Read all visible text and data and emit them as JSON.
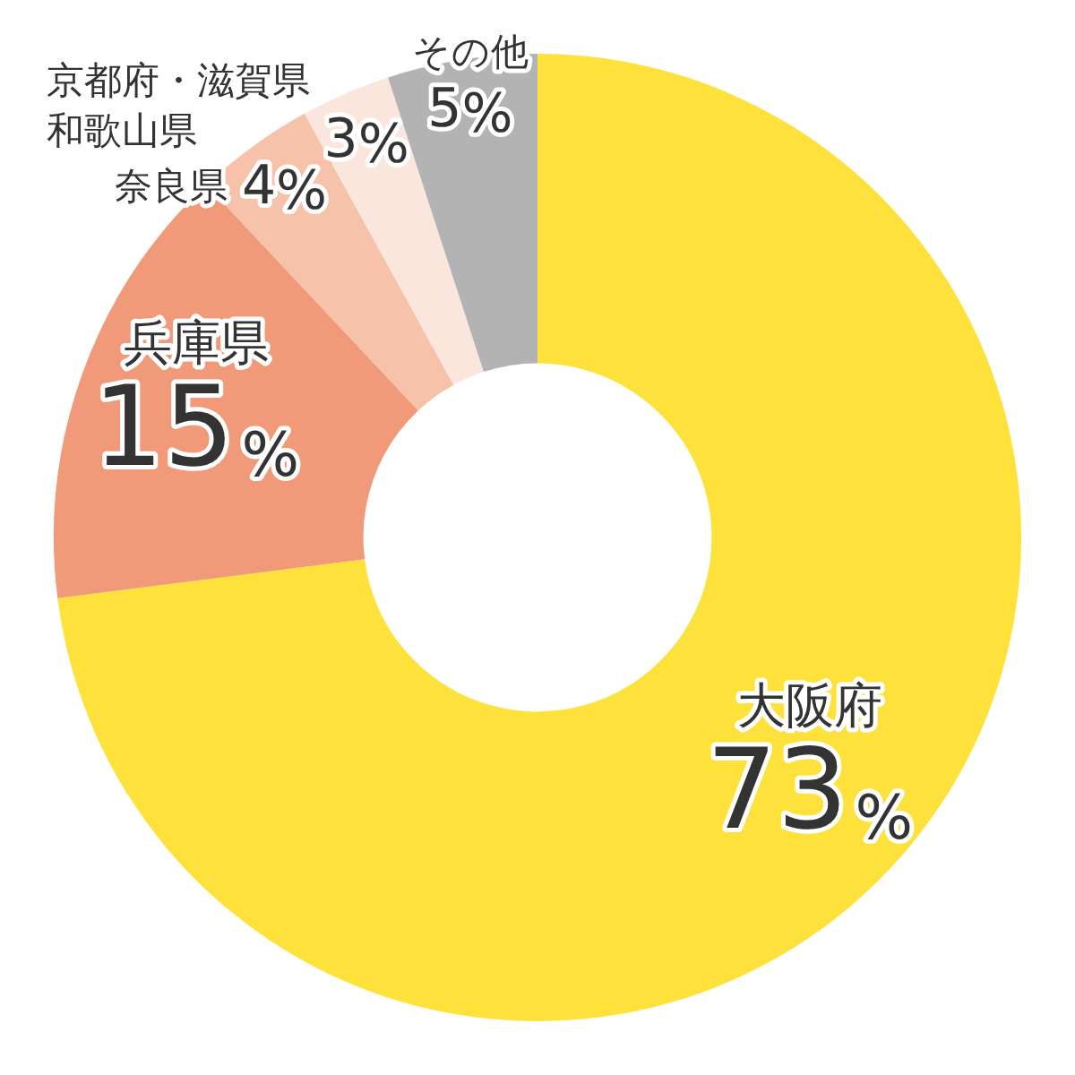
{
  "chart_data": {
    "type": "donut",
    "categories": [
      "大阪府",
      "兵庫県",
      "奈良県",
      "京都府・滋賀県和歌山県",
      "その他"
    ],
    "values": [
      73,
      15,
      4,
      3,
      5
    ],
    "colors": [
      "#fee13b",
      "#f09a79",
      "#f6c2a9",
      "#fae6dd",
      "#b3b3b3"
    ],
    "value_labels": [
      "73%",
      "15%",
      "4%",
      "3%",
      "5%"
    ],
    "legend": false
  }
}
